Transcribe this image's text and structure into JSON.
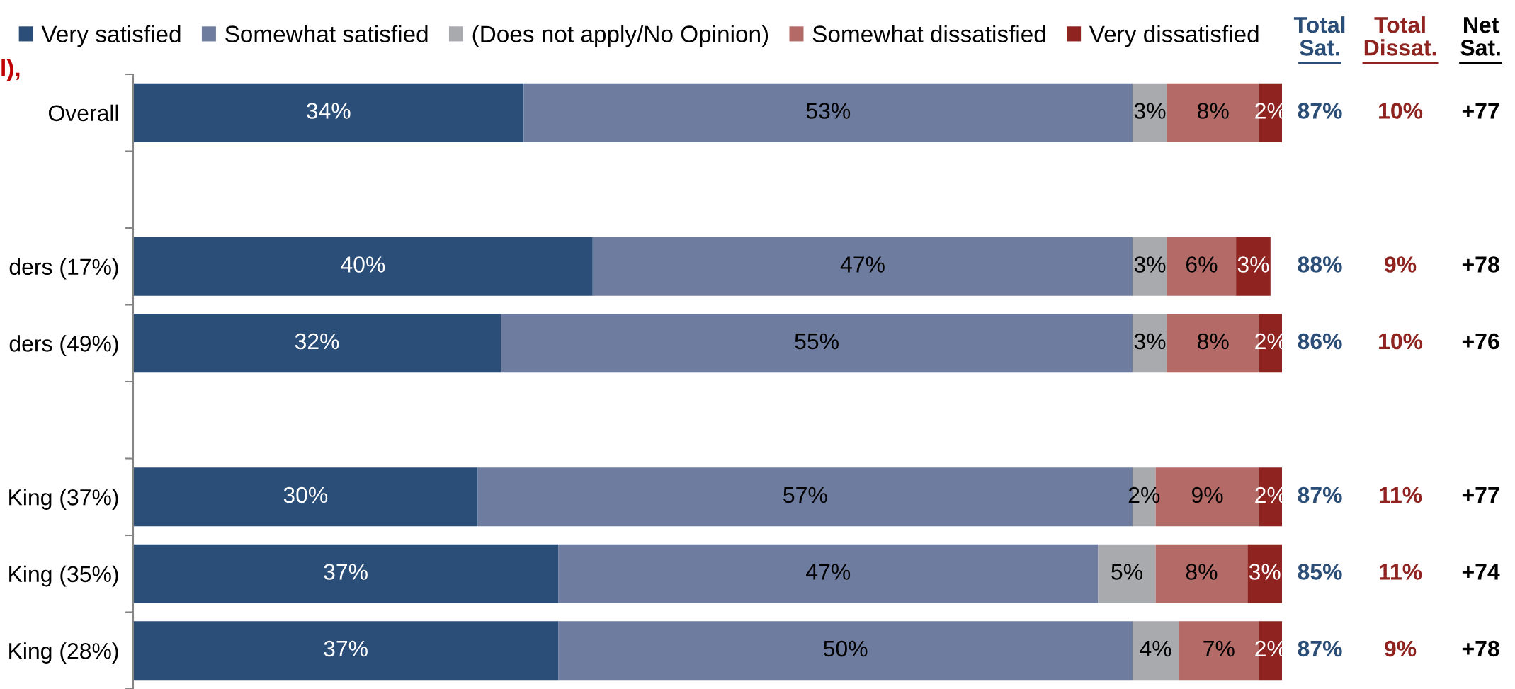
{
  "chart_data": {
    "type": "bar",
    "orientation": "horizontal",
    "stacked": true,
    "title": "l),",
    "categories": [
      "Overall",
      null,
      "ders (17%)",
      "ders (49%)",
      null,
      "King (37%)",
      "King (35%)",
      "King (28%)"
    ],
    "series": [
      {
        "name": "Very satisfied",
        "color": "#2a4e78",
        "values": [
          34,
          null,
          40,
          32,
          null,
          30,
          37,
          37
        ],
        "value_labels": [
          "34%",
          null,
          "40%",
          "32%",
          null,
          "30%",
          "37%",
          "37%"
        ]
      },
      {
        "name": "Somewhat satisfied",
        "color": "#6e7ca0",
        "values": [
          53,
          null,
          47,
          55,
          null,
          57,
          47,
          50
        ],
        "value_labels": [
          "53%",
          null,
          "47%",
          "55%",
          null,
          "57%",
          "47%",
          "50%"
        ]
      },
      {
        "name": "(Does not apply/No Opinion)",
        "color": "#a9aaad",
        "values": [
          3,
          null,
          3,
          3,
          null,
          2,
          5,
          4
        ],
        "value_labels": [
          "3%",
          null,
          "3%",
          "3%",
          null,
          "2%",
          "5%",
          "4%"
        ]
      },
      {
        "name": "Somewhat dissatisfied",
        "color": "#b46b68",
        "values": [
          8,
          null,
          6,
          8,
          null,
          9,
          8,
          7
        ],
        "value_labels": [
          "8%",
          null,
          "6%",
          "8%",
          null,
          "9%",
          "8%",
          "7%"
        ]
      },
      {
        "name": "Very dissatisfied",
        "color": "#8e2320",
        "values": [
          2,
          null,
          3,
          2,
          null,
          2,
          3,
          2
        ],
        "value_labels": [
          "2%",
          null,
          "3%",
          "2%",
          null,
          "2%",
          "3%",
          "2%"
        ]
      }
    ],
    "xlim": [
      0,
      100
    ],
    "tick_labels": "y",
    "legend": "top",
    "annotations": [
      "Total\nSat.",
      "Total\nDissat.",
      "Net\nSat.",
      "87%",
      "10%",
      "+77",
      "88%",
      "9%",
      "+78",
      "86%",
      "10%",
      "+76",
      "87%",
      "11%",
      "+77",
      "85%",
      "11%",
      "+74",
      "87%",
      "9%",
      "+78"
    ]
  }
}
